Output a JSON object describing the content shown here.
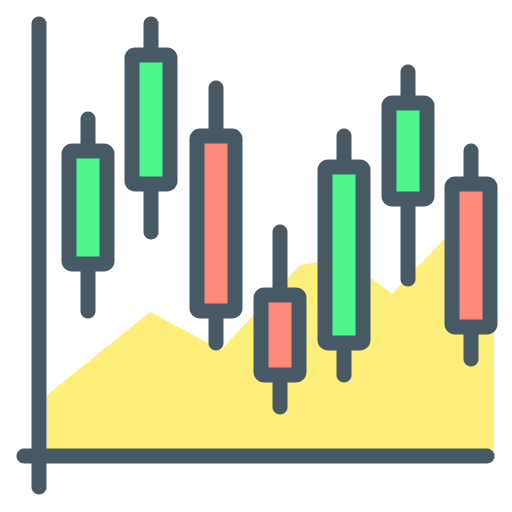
{
  "colors": {
    "outline": "#475964",
    "area_fill": "#FDEF7A",
    "bullish_fill": "#4EF78E",
    "bearish_fill": "#FF8A7C",
    "background": "#FFFFFF"
  },
  "icon_name": "candlestick-chart-icon",
  "candles": [
    {
      "direction": "bullish"
    },
    {
      "direction": "bullish"
    },
    {
      "direction": "bearish"
    },
    {
      "direction": "bearish"
    },
    {
      "direction": "bullish"
    },
    {
      "direction": "bullish"
    },
    {
      "direction": "bearish"
    }
  ]
}
